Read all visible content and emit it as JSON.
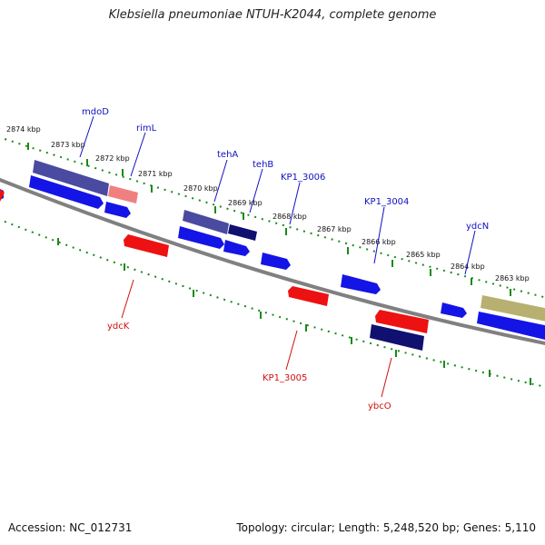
{
  "title": "Klebsiella pneumoniae NTUH-K2044, complete genome",
  "footer": {
    "accession": "Accession: NC_012731",
    "summary": "Topology: circular; Length: 5,248,520 bp; Genes: 5,110"
  },
  "colors": {
    "backbone": "#808080",
    "ticks": "#1a8a1a",
    "top_label": "#1010c0",
    "bottom_label": "#d01010",
    "gene_blue": "#1414e6",
    "gene_red": "#ee1111",
    "gene_navy": "#4a4aa0",
    "gene_darknavy": "#101070",
    "gene_pink": "#f08080",
    "gene_olive": "#b8b070"
  },
  "scale_labels": [
    "2874 kbp",
    "2873 kbp",
    "2872 kbp",
    "2871 kbp",
    "2870 kbp",
    "2869 kbp",
    "2868 kbp",
    "2867 kbp",
    "2866 kbp",
    "2865 kbp",
    "2864 kbp",
    "2863 kbp"
  ],
  "top_gene_labels": [
    "mdoD",
    "rimL",
    "tehA",
    "tehB",
    "KP1_3006",
    "KP1_3004",
    "ydcN"
  ],
  "bottom_gene_labels": [
    "ydcK",
    "KP1_3005",
    "ybcO"
  ]
}
